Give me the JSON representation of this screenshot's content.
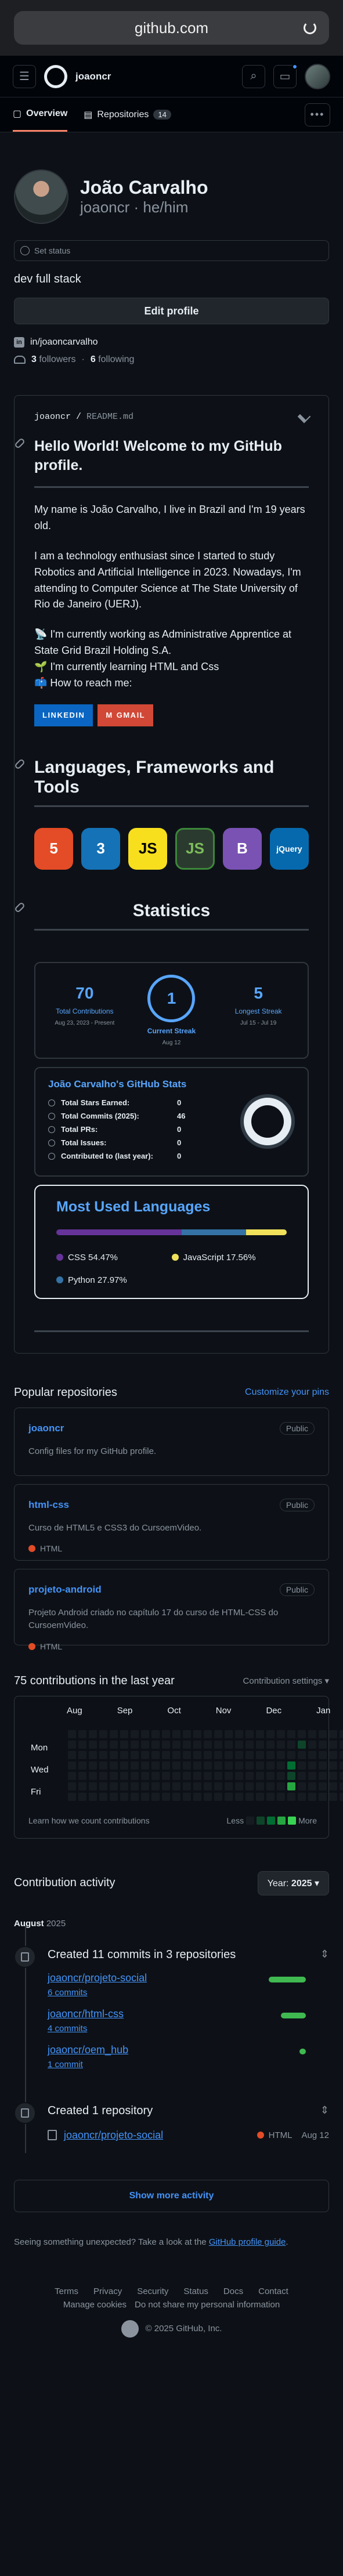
{
  "browser": {
    "url": "github.com"
  },
  "header": {
    "username": "joaoncr"
  },
  "tabs": [
    {
      "label": "Overview"
    },
    {
      "label": "Repositories",
      "count": "14"
    }
  ],
  "profile": {
    "name": "João Carvalho",
    "handle": "joaoncr · he/him",
    "status_placeholder": "Set status",
    "bio": "dev full stack",
    "edit_label": "Edit profile",
    "linkedin": "in/joaoncarvalho",
    "followers_count": "3",
    "followers_label": "followers",
    "following_count": "6",
    "following_label": "following"
  },
  "readme": {
    "path_user": "joaoncr",
    "path_file": "README.md",
    "heading": "Hello World! Welcome to my GitHub profile.",
    "para1": "My name is João Carvalho, I live in Brazil and I'm 19 years old.",
    "para2": "I am a technology enthusiast since I started to study Robotics and Artificial Intelligence in 2023. Nowadays, I'm attending to Computer Science at The State University of Rio de Janeiro (UERJ).",
    "line1": "📡 I'm currently working as Administrative Apprentice at State Grid Brazil Holding S.A.",
    "line2": "🌱 I'm currently learning HTML and Css",
    "line3": "📫 How to reach me:",
    "badge_linkedin": "LINKEDIN",
    "badge_gmail": "GMAIL",
    "h_langs": "Languages, Frameworks and Tools",
    "tech_icons": [
      "html5-icon",
      "css3-icon",
      "javascript-icon",
      "nodejs-icon",
      "bootstrap-icon",
      "jquery-icon"
    ],
    "tech_labels": [
      "5",
      "3",
      "JS",
      "JS",
      "B",
      "jQuery"
    ],
    "h_stats": "Statistics"
  },
  "streak": {
    "total_num": "70",
    "total_label": "Total Contributions",
    "total_date": "Aug 23, 2023 - Present",
    "current_num": "1",
    "current_label": "Current Streak",
    "current_date": "Aug 12",
    "longest_num": "5",
    "longest_label": "Longest Streak",
    "longest_date": "Jul 15 - Jul 19"
  },
  "ghstats": {
    "title": "João Carvalho's GitHub Stats",
    "rows": [
      {
        "k": "Total Stars Earned:",
        "v": "0"
      },
      {
        "k": "Total Commits (2025):",
        "v": "46"
      },
      {
        "k": "Total PRs:",
        "v": "0"
      },
      {
        "k": "Total Issues:",
        "v": "0"
      },
      {
        "k": "Contributed to (last year):",
        "v": "0"
      }
    ]
  },
  "languages": {
    "title": "Most Used Languages",
    "items": [
      {
        "name": "CSS",
        "percent": 54.47,
        "label": "CSS 54.47%",
        "color": "#663399"
      },
      {
        "name": "JavaScript",
        "percent": 17.56,
        "label": "JavaScript 17.56%",
        "color": "#f1e05a"
      },
      {
        "name": "Python",
        "percent": 27.97,
        "label": "Python 27.97%",
        "color": "#3572A5"
      }
    ]
  },
  "popular": {
    "title": "Popular repositories",
    "customize": "Customize your pins",
    "repos": [
      {
        "name": "joaoncr",
        "badge": "Public",
        "desc": "Config files for my GitHub profile.",
        "lang": ""
      },
      {
        "name": "html-css",
        "badge": "Public",
        "desc": "Curso de HTML5 e CSS3 do CursoemVideo.",
        "lang": "HTML"
      },
      {
        "name": "projeto-android",
        "badge": "Public",
        "desc": "Projeto Android criado no capítulo 17 do curso de HTML-CSS do CursoemVideo.",
        "lang": "HTML"
      }
    ]
  },
  "contrib": {
    "title": "75 contributions in the last year",
    "settings": "Contribution settings ▾",
    "months": [
      "Aug",
      "Sep",
      "Oct",
      "Nov",
      "Dec",
      "Jan"
    ],
    "days": [
      "Mon",
      "Wed",
      "Fri"
    ],
    "learn": "Learn how we count contributions",
    "less": "Less",
    "more": "More"
  },
  "activity": {
    "title": "Contribution activity",
    "year_label": "Year:",
    "year": "2025",
    "month": "August",
    "month_year": "2025",
    "commits_title": "Created 11 commits in 3 repositories",
    "commits": [
      {
        "repo": "joaoncr/projeto-social",
        "count": "6 commits",
        "ratio": 6
      },
      {
        "repo": "joaoncr/html-css",
        "count": "4 commits",
        "ratio": 4
      },
      {
        "repo": "joaoncr/oem_hub",
        "count": "1 commit",
        "ratio": 1
      }
    ],
    "repo_title": "Created 1 repository",
    "created_repo": "joaoncr/projeto-social",
    "created_lang": "HTML",
    "created_date": "Aug 12",
    "show_more": "Show more activity",
    "unexpected": "Seeing something unexpected? Take a look at the",
    "guide_link": "GitHub profile guide",
    "guide_end": "."
  },
  "footer": {
    "links": [
      "Terms",
      "Privacy",
      "Security",
      "Status",
      "Docs",
      "Contact"
    ],
    "links2": [
      "Manage cookies",
      "Do not share my personal information"
    ],
    "copyright": "© 2025 GitHub, Inc."
  }
}
